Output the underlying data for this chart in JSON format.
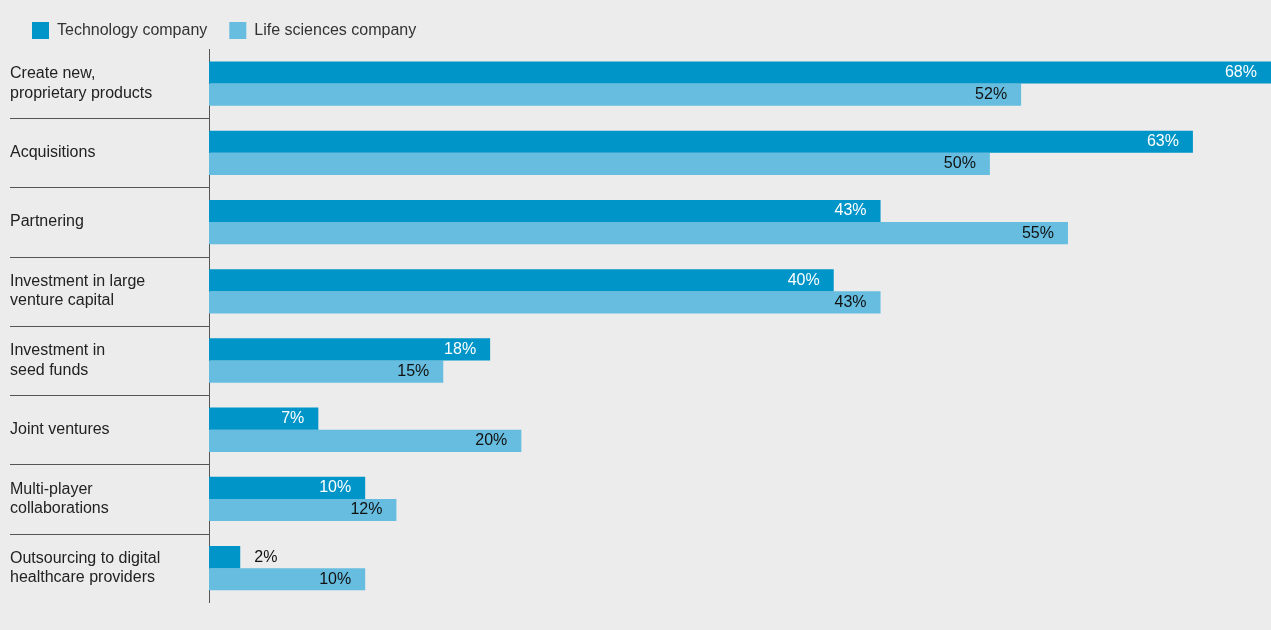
{
  "chart_data": {
    "type": "bar",
    "orientation": "horizontal",
    "categories": [
      "Create new,\nproprietary products",
      "Acquisitions",
      "Partnering",
      "Investment in large\nventure capital",
      "Investment in\nseed funds",
      "Joint ventures",
      "Multi-player\ncollaborations",
      "Outsourcing to digital\nhealthcare providers"
    ],
    "series": [
      {
        "name": "Technology company",
        "color": "#0095c8",
        "values": [
          68,
          63,
          43,
          40,
          18,
          7,
          10,
          2
        ],
        "value_labels": [
          "68%",
          "63%",
          "43%",
          "40%",
          "18%",
          "7%",
          "10%",
          "2%"
        ]
      },
      {
        "name": "Life sciences company",
        "color": "#66bde0",
        "values": [
          52,
          50,
          55,
          43,
          15,
          20,
          12,
          10
        ],
        "value_labels": [
          "52%",
          "50%",
          "55%",
          "43%",
          "15%",
          "20%",
          "12%",
          "10%"
        ]
      }
    ],
    "legend": "top left"
  }
}
